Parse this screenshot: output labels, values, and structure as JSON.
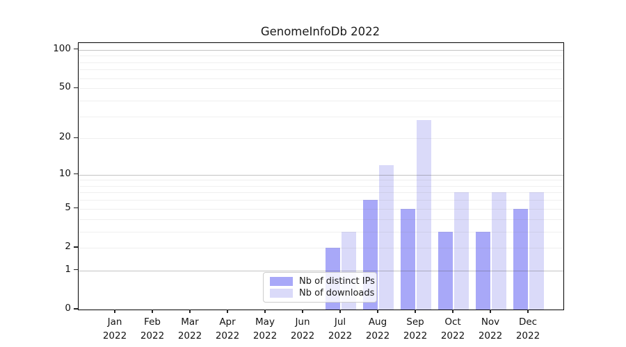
{
  "title": "GenomeInfoDb 2022",
  "chart_data": {
    "type": "bar",
    "categories": [
      "Jan 2022",
      "Feb 2022",
      "Mar 2022",
      "Apr 2022",
      "May 2022",
      "Jun 2022",
      "Jul 2022",
      "Aug 2022",
      "Sep 2022",
      "Oct 2022",
      "Nov 2022",
      "Dec 2022"
    ],
    "series": [
      {
        "name": "Nb of distinct IPs",
        "color": "#a8a8f8",
        "values": [
          0,
          0,
          0,
          0,
          0,
          0,
          2,
          6,
          5,
          3,
          3,
          5
        ]
      },
      {
        "name": "Nb of downloads",
        "color": "#dadaf9",
        "values": [
          0,
          0,
          0,
          0,
          0,
          0,
          3,
          12,
          28,
          7,
          7,
          7
        ]
      }
    ],
    "title": "GenomeInfoDb 2022",
    "xlabel": "",
    "ylabel": "",
    "yscale": "log1p",
    "ylim": [
      0,
      113
    ],
    "yticks": [
      0,
      1,
      2,
      5,
      10,
      20,
      50,
      100
    ],
    "major_gridlines": [
      1,
      10,
      100
    ],
    "minor_gridlines": [
      2,
      3,
      4,
      5,
      6,
      7,
      8,
      9,
      20,
      30,
      40,
      50,
      60,
      70,
      80,
      90
    ],
    "grid": true,
    "legend_position": "lower center"
  }
}
